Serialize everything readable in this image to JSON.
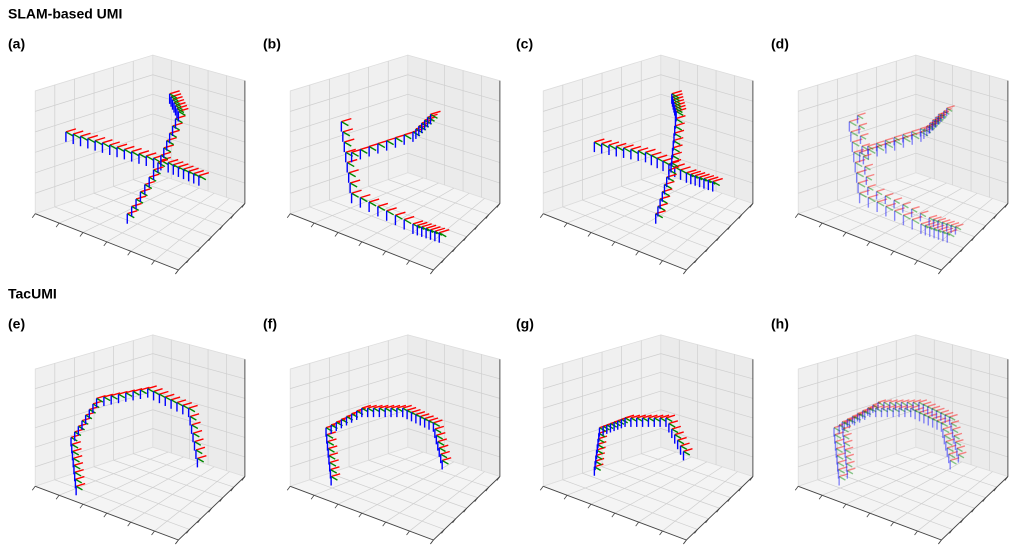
{
  "sections": [
    {
      "title": "SLAM-based UMI",
      "panels": [
        "(a)",
        "(b)",
        "(c)",
        "(d)"
      ]
    },
    {
      "title": "TacUMI",
      "panels": [
        "(e)",
        "(f)",
        "(g)",
        "(h)"
      ]
    }
  ]
}
